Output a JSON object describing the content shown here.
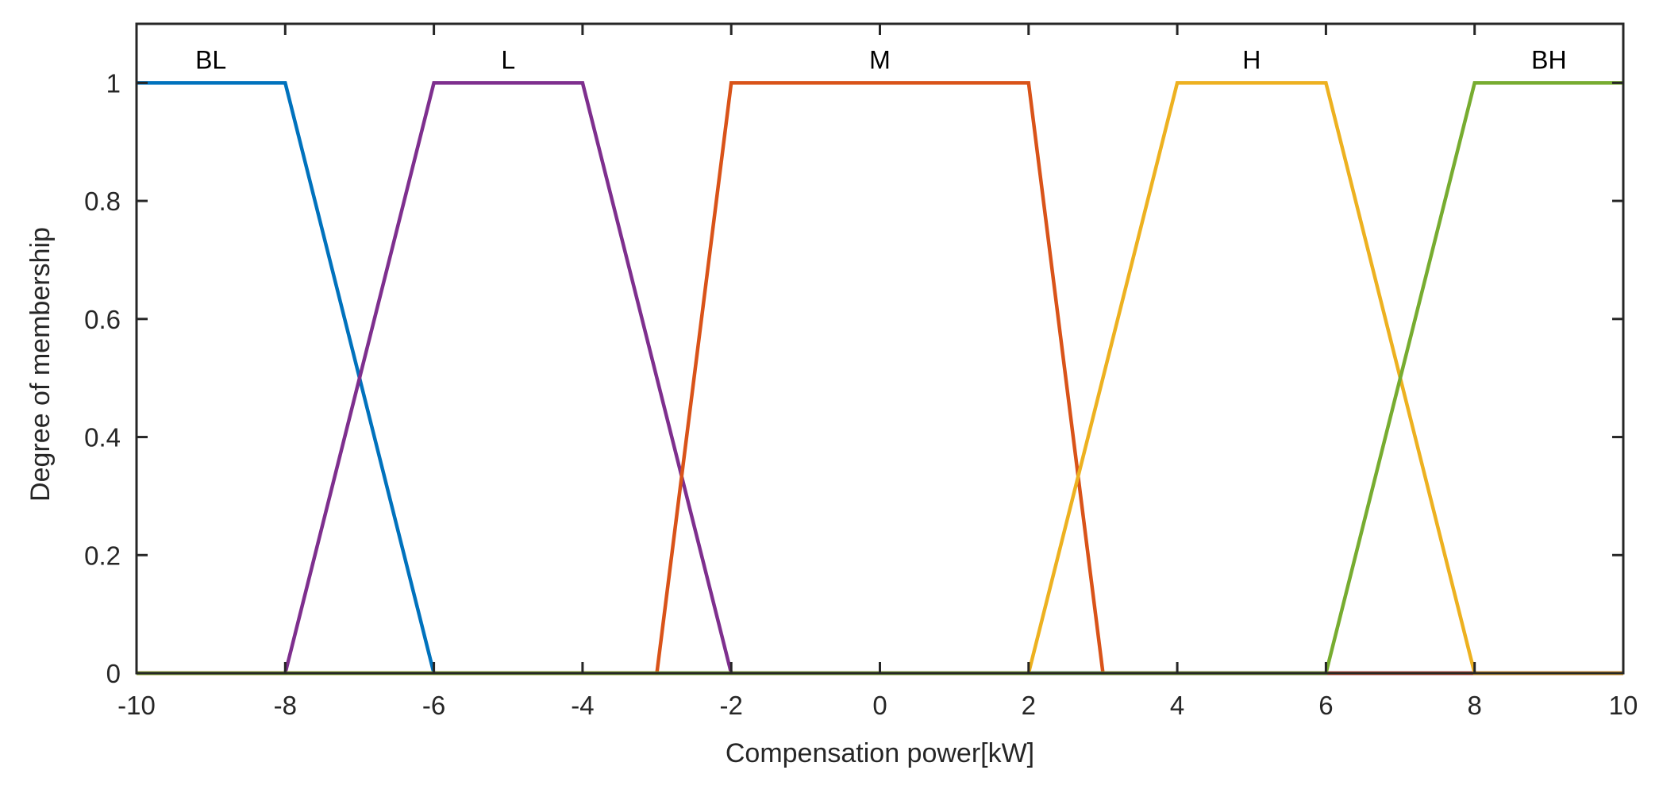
{
  "chart_data": {
    "type": "line",
    "title": "",
    "xlabel": "Compensation power[kW]",
    "ylabel": "Degree of membership",
    "xlim": [
      -10,
      10
    ],
    "ylim": [
      0,
      1.1
    ],
    "xticks": [
      -10,
      -8,
      -6,
      -4,
      -2,
      0,
      2,
      4,
      6,
      8,
      10
    ],
    "yticks": [
      0,
      0.2,
      0.4,
      0.6,
      0.8,
      1
    ],
    "xtick_labels": [
      "-10",
      "-8",
      "-6",
      "-4",
      "-2",
      "0",
      "2",
      "4",
      "6",
      "8",
      "10"
    ],
    "ytick_labels": [
      "0",
      "0.2",
      "0.4",
      "0.6",
      "0.8",
      "1"
    ],
    "grid": false,
    "legend": "none",
    "series": [
      {
        "name": "BL",
        "color": "#0072BD",
        "x": [
          -10,
          -8,
          -6,
          10
        ],
        "y": [
          1,
          1,
          0,
          0
        ],
        "label_x": -9
      },
      {
        "name": "L",
        "color": "#7E2F8E",
        "x": [
          -10,
          -8,
          -6,
          -4,
          -2,
          10
        ],
        "y": [
          0,
          0,
          1,
          1,
          0,
          0
        ],
        "label_x": -5
      },
      {
        "name": "M",
        "color": "#D95319",
        "x": [
          -10,
          -3,
          -2,
          2,
          3,
          10
        ],
        "y": [
          0,
          0,
          1,
          1,
          0,
          0
        ],
        "label_x": 0
      },
      {
        "name": "H",
        "color": "#EDB120",
        "x": [
          -10,
          2,
          4,
          6,
          8,
          10
        ],
        "y": [
          0,
          0,
          1,
          1,
          0,
          0
        ],
        "label_x": 5
      },
      {
        "name": "BH",
        "color": "#77AC30",
        "x": [
          -10,
          6,
          8,
          10
        ],
        "y": [
          0,
          0,
          1,
          1
        ],
        "label_x": 9
      }
    ],
    "label_y": 1.04
  }
}
